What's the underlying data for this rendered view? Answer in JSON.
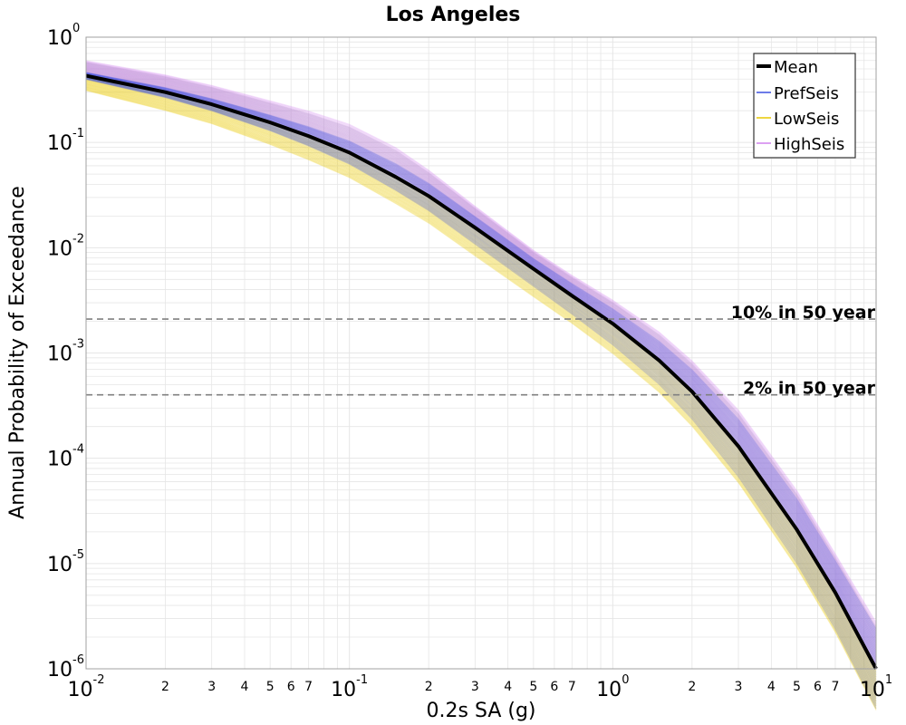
{
  "chart_data": {
    "type": "line",
    "title": "Los Angeles",
    "xlabel": "0.2s SA (g)",
    "ylabel": "Annual Probability of Exceedance",
    "xscale": "log",
    "yscale": "log",
    "xlim": [
      0.01,
      10
    ],
    "ylim": [
      1e-06,
      1
    ],
    "grid": true,
    "legend_position": "top-right",
    "x_major_ticks": [
      {
        "base": "10",
        "exp": "-2"
      },
      {
        "base": "10",
        "exp": "-1"
      },
      {
        "base": "10",
        "exp": "0"
      },
      {
        "base": "10",
        "exp": "1"
      }
    ],
    "x_minor_tick_labels": [
      "2",
      "3",
      "4",
      "5",
      "6",
      "7"
    ],
    "y_major_ticks": [
      {
        "base": "10",
        "exp": "0"
      },
      {
        "base": "10",
        "exp": "-1"
      },
      {
        "base": "10",
        "exp": "-2"
      },
      {
        "base": "10",
        "exp": "-3"
      },
      {
        "base": "10",
        "exp": "-4"
      },
      {
        "base": "10",
        "exp": "-5"
      },
      {
        "base": "10",
        "exp": "-6"
      }
    ],
    "x": [
      0.01,
      0.02,
      0.03,
      0.05,
      0.07,
      0.1,
      0.15,
      0.2,
      0.3,
      0.5,
      0.7,
      1.0,
      1.5,
      2.0,
      3.0,
      5.0,
      7.0,
      10.0
    ],
    "series": [
      {
        "name": "Mean",
        "color": "#000000",
        "values": [
          0.43,
          0.3,
          0.23,
          0.155,
          0.115,
          0.08,
          0.047,
          0.031,
          0.0155,
          0.0063,
          0.0035,
          0.0019,
          0.00085,
          0.00043,
          0.00013,
          2.1e-05,
          5.3e-06,
          1e-06
        ]
      },
      {
        "name": "PrefSeis",
        "color": "#3a4fe0",
        "values": [
          0.43,
          0.3,
          0.23,
          0.155,
          0.115,
          0.08,
          0.047,
          0.031,
          0.0155,
          0.0063,
          0.0035,
          0.0019,
          0.00085,
          0.00043,
          0.00013,
          2.1e-05,
          5.3e-06,
          1e-06
        ]
      },
      {
        "name": "LowSeis",
        "color": "#e8c800",
        "values": [
          0.31,
          0.2,
          0.15,
          0.095,
          0.068,
          0.046,
          0.026,
          0.017,
          0.0083,
          0.0034,
          0.0019,
          0.00098,
          0.00042,
          0.0002,
          5.8e-05,
          9e-06,
          2.2e-06,
          4e-07
        ]
      },
      {
        "name": "HighSeis",
        "color": "#d080ee",
        "values": [
          0.6,
          0.44,
          0.35,
          0.25,
          0.2,
          0.15,
          0.09,
          0.055,
          0.025,
          0.0095,
          0.0055,
          0.0032,
          0.0016,
          0.00085,
          0.00029,
          5e-05,
          1.25e-05,
          2.8e-06
        ]
      }
    ],
    "reference_lines": [
      {
        "label": "10% in 50 year",
        "y": 0.0021
      },
      {
        "label": "2% in 50 year",
        "y": 0.0004
      }
    ],
    "colors": {
      "mean": "#000000",
      "pref": "#3a4fe0",
      "low": "#e8c800",
      "high": "#d080ee",
      "mix": "#9a8fb4",
      "grid": "#e6e6e6",
      "ref_line": "#808080"
    }
  }
}
